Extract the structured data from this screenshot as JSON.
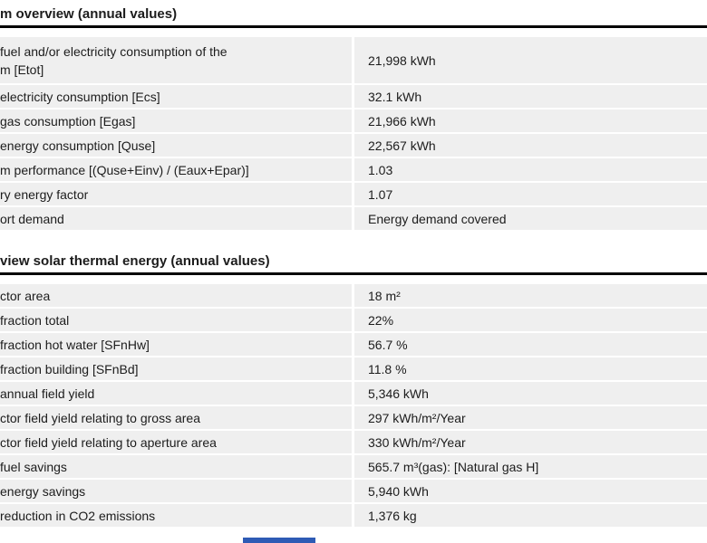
{
  "page": {
    "background": "#ffffff"
  },
  "colors": {
    "row_bg": "#efefef",
    "text": "#1c1c1c",
    "rule": "#000000",
    "bottom_fragment_blue": "#2e5bb5"
  },
  "sections": [
    {
      "title": "m overview (annual values)",
      "rows": [
        {
          "label": "fuel and/or electricity consumption of the",
          "label_line2": "m [Etot]",
          "value": "21,998 kWh"
        },
        {
          "label": "electricity consumption [Ecs]",
          "value": "32.1 kWh"
        },
        {
          "label": "gas consumption [Egas]",
          "value": "21,966 kWh"
        },
        {
          "label": "energy consumption [Quse]",
          "value": "22,567 kWh"
        },
        {
          "label": "m performance [(Quse+Einv) / (Eaux+Epar)]",
          "value": "1.03"
        },
        {
          "label": "ry energy factor",
          "value": "1.07"
        },
        {
          "label": "ort demand",
          "value": "Energy demand covered"
        }
      ]
    },
    {
      "title": "view solar thermal energy (annual values)",
      "rows": [
        {
          "label": "ctor area",
          "value": "18 m²"
        },
        {
          "label": "fraction total",
          "value": "22%"
        },
        {
          "label": "fraction hot water [SFnHw]",
          "value": "56.7 %"
        },
        {
          "label": "fraction building [SFnBd]",
          "value": "11.8 %"
        },
        {
          "label": "annual field yield",
          "value": "5,346 kWh"
        },
        {
          "label": "ctor field yield relating to gross area",
          "value": "297 kWh/m²/Year"
        },
        {
          "label": "ctor field yield relating to aperture area",
          "value": "330 kWh/m²/Year"
        },
        {
          "label": "fuel savings",
          "value": "565.7 m³(gas): [Natural gas H]"
        },
        {
          "label": "energy savings",
          "value": "5,940 kWh"
        },
        {
          "label": "reduction in CO2 emissions",
          "value": "1,376 kg"
        }
      ]
    }
  ]
}
